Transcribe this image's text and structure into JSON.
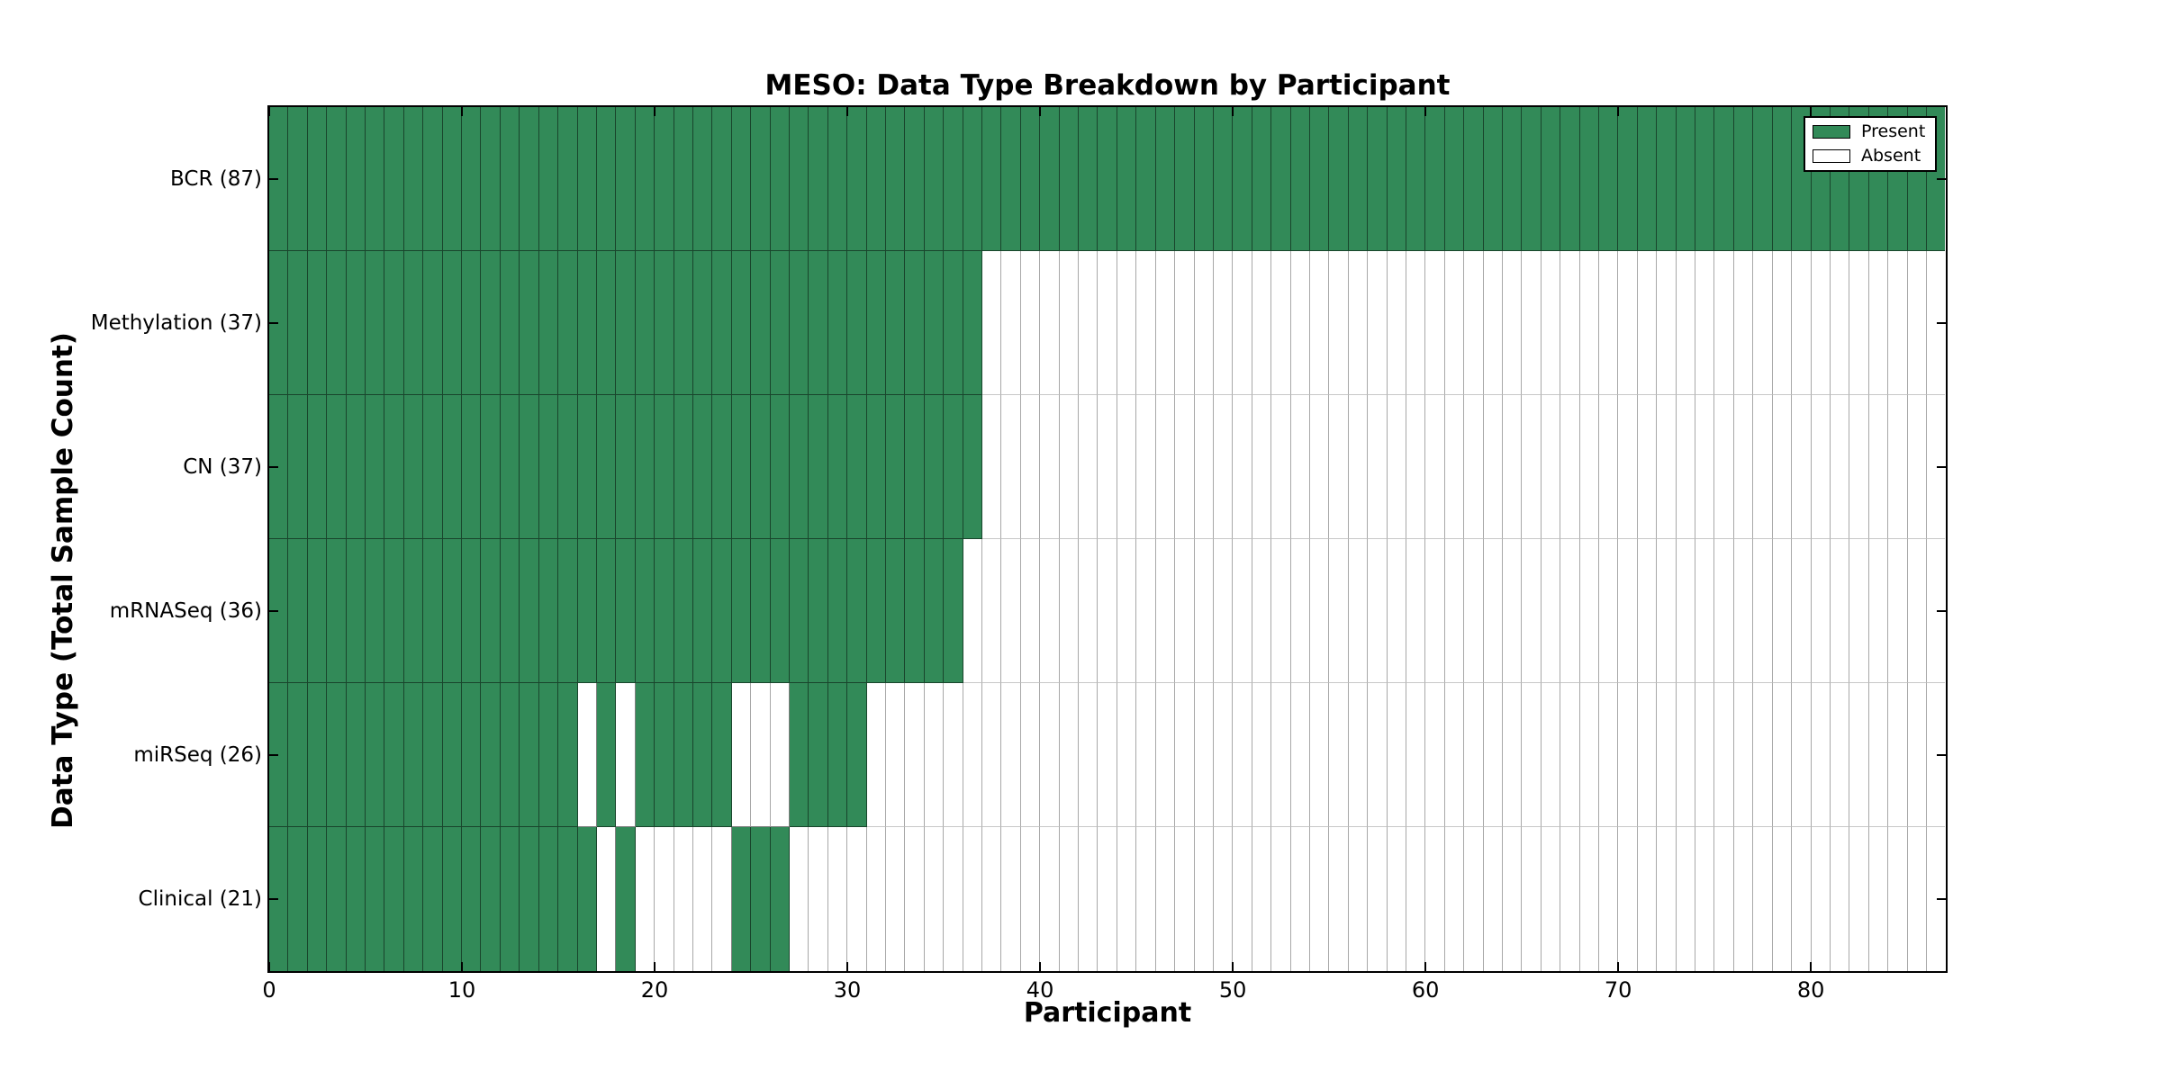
{
  "chart_data": {
    "type": "heatmap",
    "title": "MESO: Data Type Breakdown by Participant",
    "xlabel": "Participant",
    "ylabel": "Data Type (Total Sample Count)",
    "x_ticks": [
      0,
      10,
      20,
      30,
      40,
      50,
      60,
      70,
      80
    ],
    "x_range": [
      0,
      87
    ],
    "n_participants": 87,
    "grid": false,
    "legend": {
      "position": "upper right",
      "entries": [
        {
          "label": "Present",
          "color": "#328a58"
        },
        {
          "label": "Absent",
          "color": "#ffffff"
        }
      ]
    },
    "colors": {
      "present": "#328a58",
      "absent": "#ffffff",
      "edge_dark": "rgba(0,0,0,0.5)",
      "edge_light_vertical": "#a8a8a8",
      "edge_light_horizontal": "#c8c8c8",
      "spine": "#000000"
    },
    "rows": [
      {
        "label": "BCR (87)",
        "data_type": "BCR",
        "total_samples": 87,
        "present_ranges": [
          [
            0,
            87
          ]
        ]
      },
      {
        "label": "Methylation (37)",
        "data_type": "Methylation",
        "total_samples": 37,
        "present_ranges": [
          [
            0,
            37
          ]
        ]
      },
      {
        "label": "CN (37)",
        "data_type": "CN",
        "total_samples": 37,
        "present_ranges": [
          [
            0,
            37
          ]
        ]
      },
      {
        "label": "mRNASeq (36)",
        "data_type": "mRNASeq",
        "total_samples": 36,
        "present_ranges": [
          [
            0,
            36
          ]
        ]
      },
      {
        "label": "miRSeq (26)",
        "data_type": "miRSeq",
        "total_samples": 26,
        "present_ranges": [
          [
            0,
            16
          ],
          [
            17,
            18
          ],
          [
            19,
            24
          ],
          [
            27,
            31
          ]
        ]
      },
      {
        "label": "Clinical (21)",
        "data_type": "Clinical",
        "total_samples": 21,
        "present_ranges": [
          [
            0,
            17
          ],
          [
            18,
            19
          ],
          [
            24,
            27
          ]
        ]
      }
    ]
  }
}
